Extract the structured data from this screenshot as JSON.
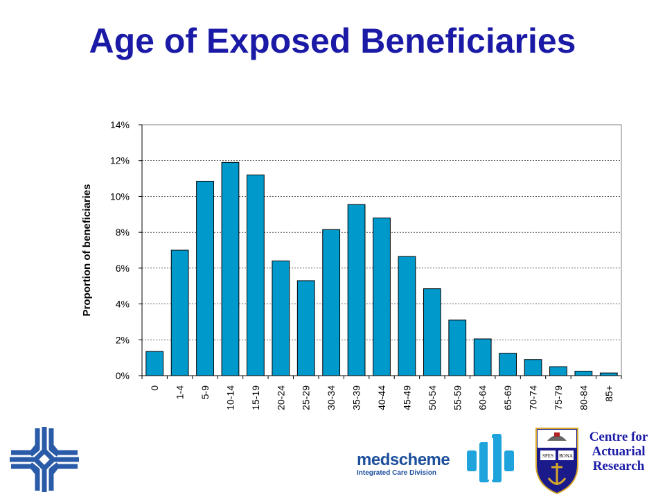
{
  "title": "Age of Exposed Beneficiaries",
  "chart_data": {
    "type": "bar",
    "title": "",
    "xlabel": "",
    "ylabel": "Proportion of beneficiaries",
    "categories": [
      "0",
      "1-4",
      "5-9",
      "10-14",
      "15-19",
      "20-24",
      "25-29",
      "30-34",
      "35-39",
      "40-44",
      "45-49",
      "50-54",
      "55-59",
      "60-64",
      "65-69",
      "70-74",
      "75-79",
      "80-84",
      "85+"
    ],
    "values": [
      1.35,
      7.0,
      10.85,
      11.9,
      11.2,
      6.4,
      5.3,
      8.15,
      9.55,
      8.8,
      6.65,
      4.85,
      3.1,
      2.05,
      1.25,
      0.9,
      0.5,
      0.25,
      0.15
    ],
    "ylim": [
      0,
      14
    ],
    "yticks": [
      "0%",
      "2%",
      "4%",
      "6%",
      "8%",
      "10%",
      "12%",
      "14%"
    ],
    "bar_color": "#0099cc",
    "grid": true,
    "legend": "none"
  },
  "footer": {
    "medscheme_name": "medscheme",
    "medscheme_sub": "Integrated Care Division",
    "car_line1": "Centre for",
    "car_line2": "Actuarial",
    "car_line3": "Research",
    "crest_motto_left": "SPES",
    "crest_motto_right": "BONA"
  },
  "colors": {
    "title": "#1a1aa6",
    "brand_blue": "#2a5ba8",
    "medscheme_blue": "#1d4f9c",
    "ms_logo": "#1ea3dc",
    "crest_shield": "#1a1a8a",
    "crest_gold": "#d6a72a",
    "crest_red": "#b22222"
  }
}
